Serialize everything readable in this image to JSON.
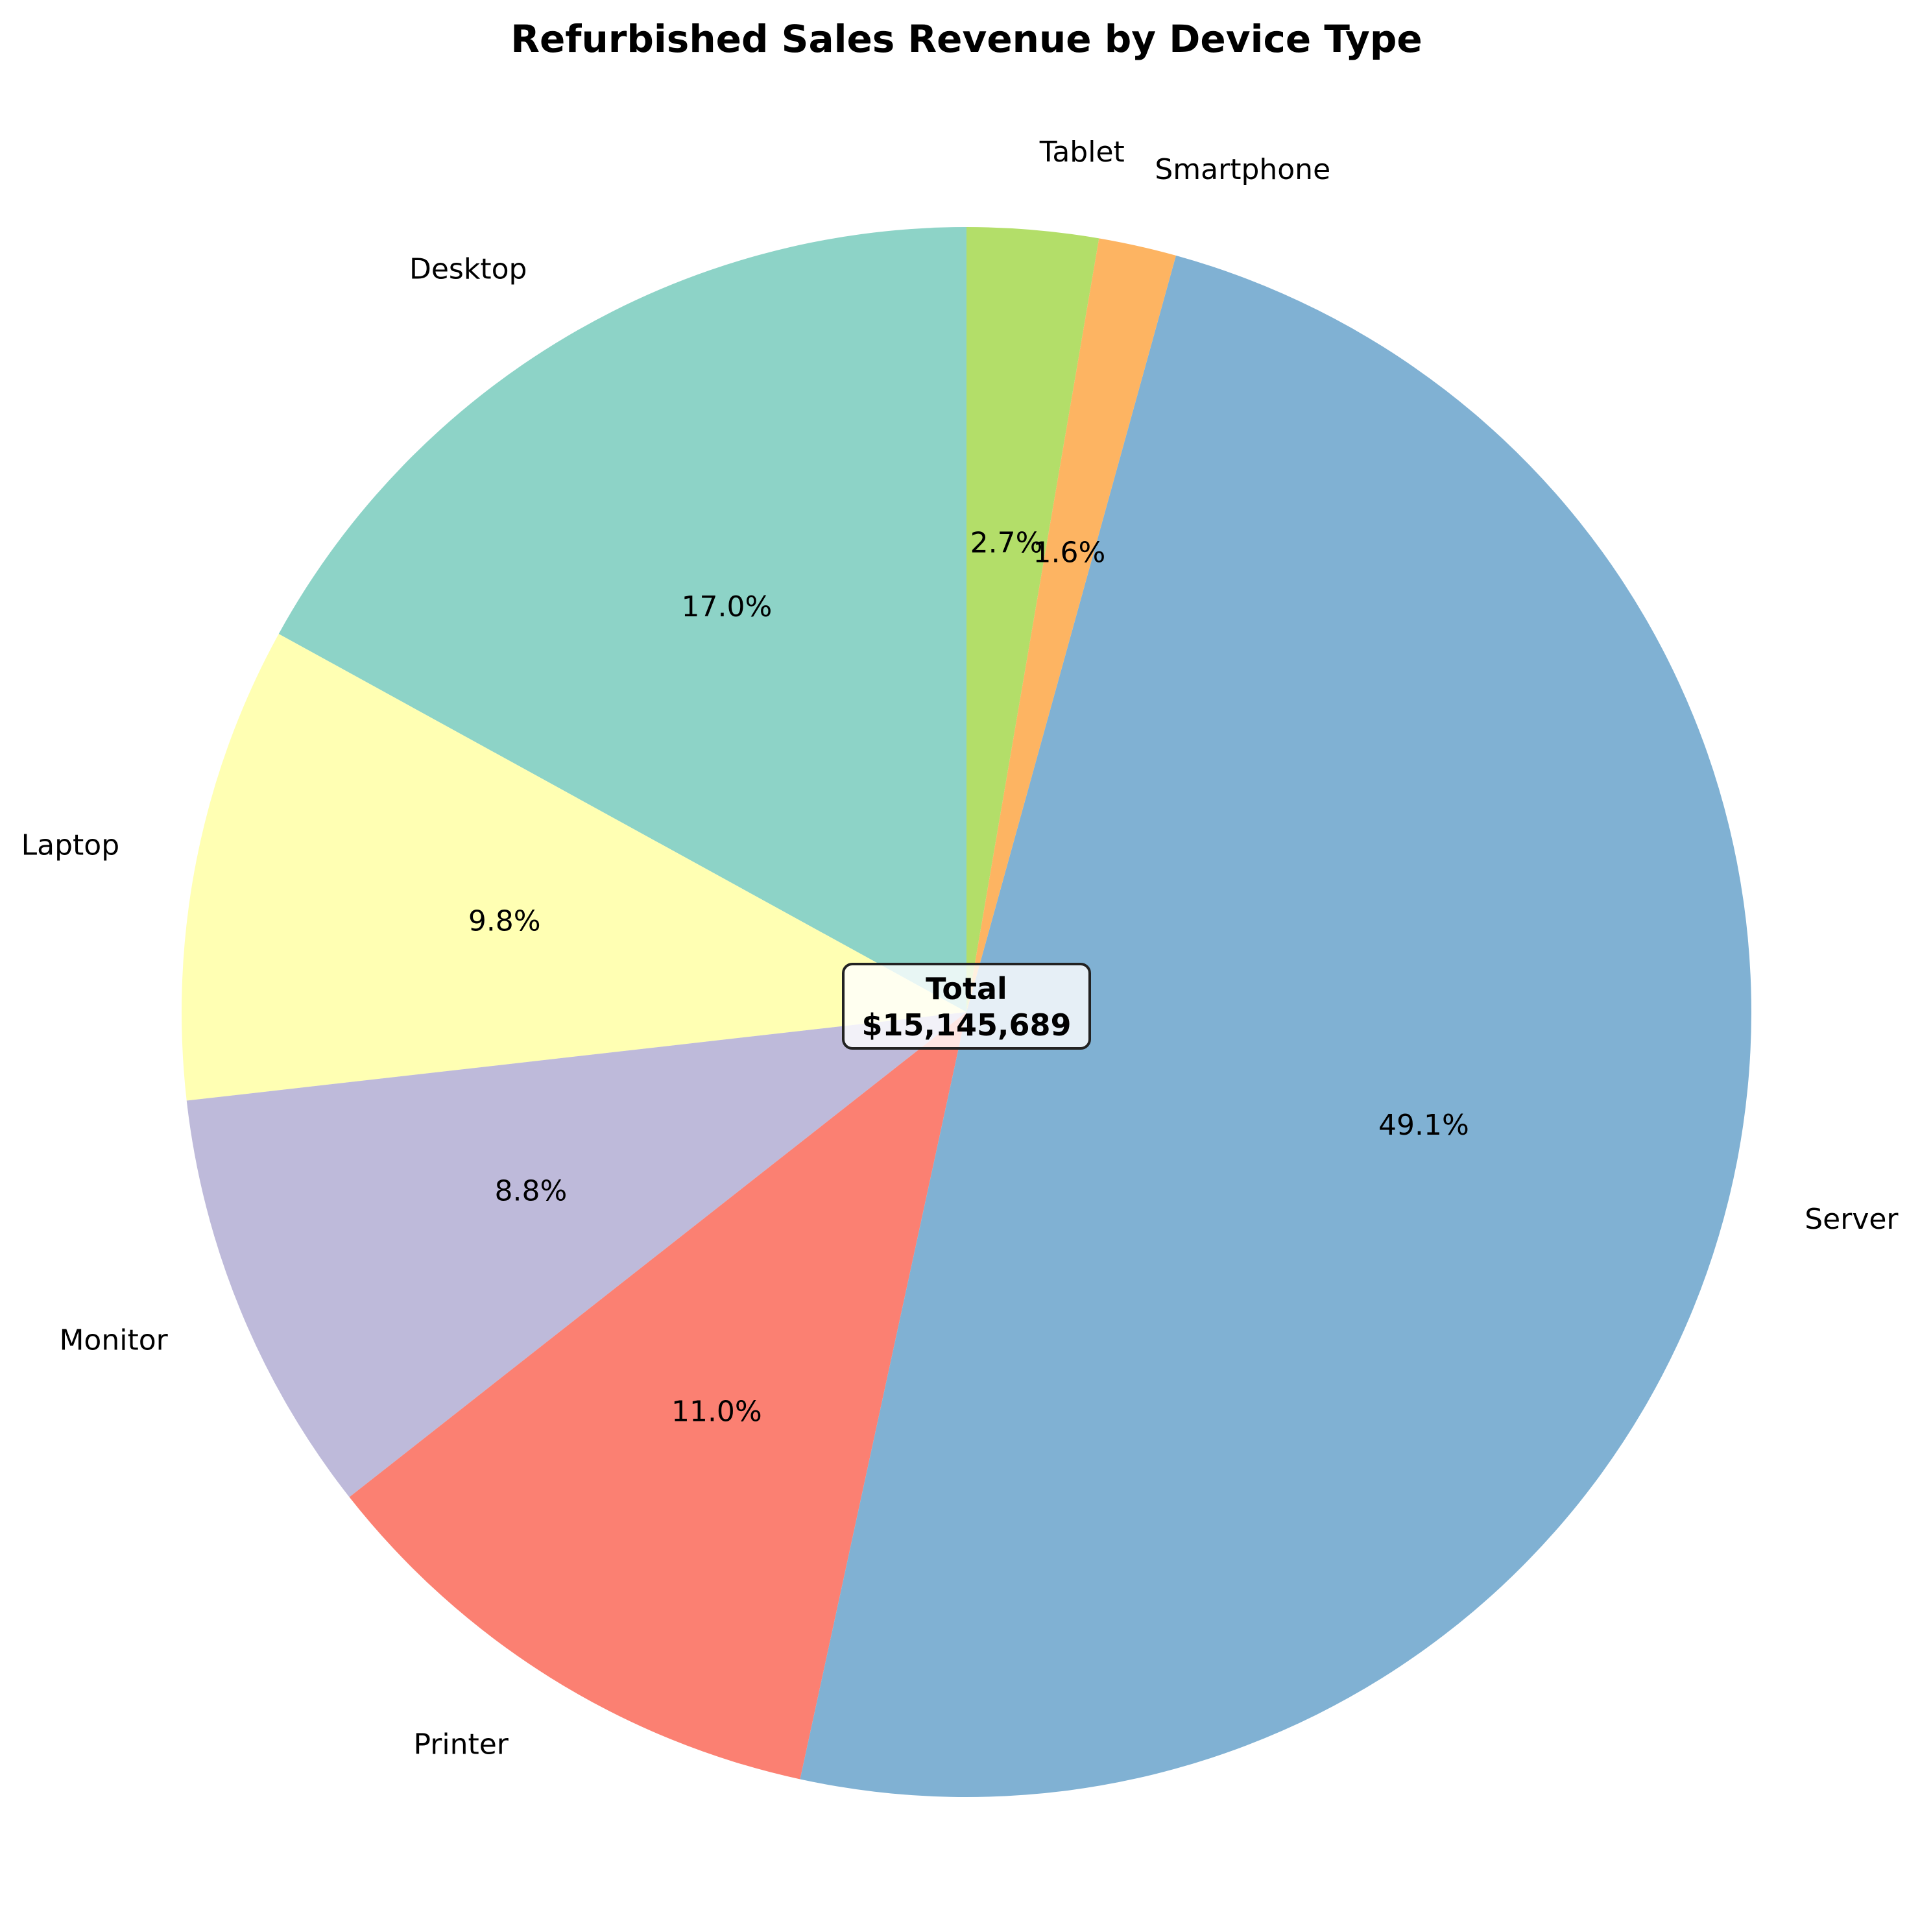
{
  "chart_data": {
    "type": "pie",
    "title": "Refurbished Sales Revenue by Device Type",
    "start_angle_deg": 90,
    "direction": "counterclockwise",
    "slices": [
      {
        "label": "Desktop",
        "value": 17.0,
        "pct_label": "17.0%",
        "color": "#8dd3c7"
      },
      {
        "label": "Laptop",
        "value": 9.8,
        "pct_label": "9.8%",
        "color": "#ffffb3"
      },
      {
        "label": "Monitor",
        "value": 8.8,
        "pct_label": "8.8%",
        "color": "#bebada"
      },
      {
        "label": "Printer",
        "value": 11.0,
        "pct_label": "11.0%",
        "color": "#fb8072"
      },
      {
        "label": "Server",
        "value": 49.1,
        "pct_label": "49.1%",
        "color": "#80b1d3"
      },
      {
        "label": "Smartphone",
        "value": 1.6,
        "pct_label": "1.6%",
        "color": "#fdb462"
      },
      {
        "label": "Tablet",
        "value": 2.7,
        "pct_label": "2.7%",
        "color": "#b3de69"
      }
    ],
    "center_box": {
      "line1": "Total",
      "line2": "$15,145,689"
    }
  }
}
